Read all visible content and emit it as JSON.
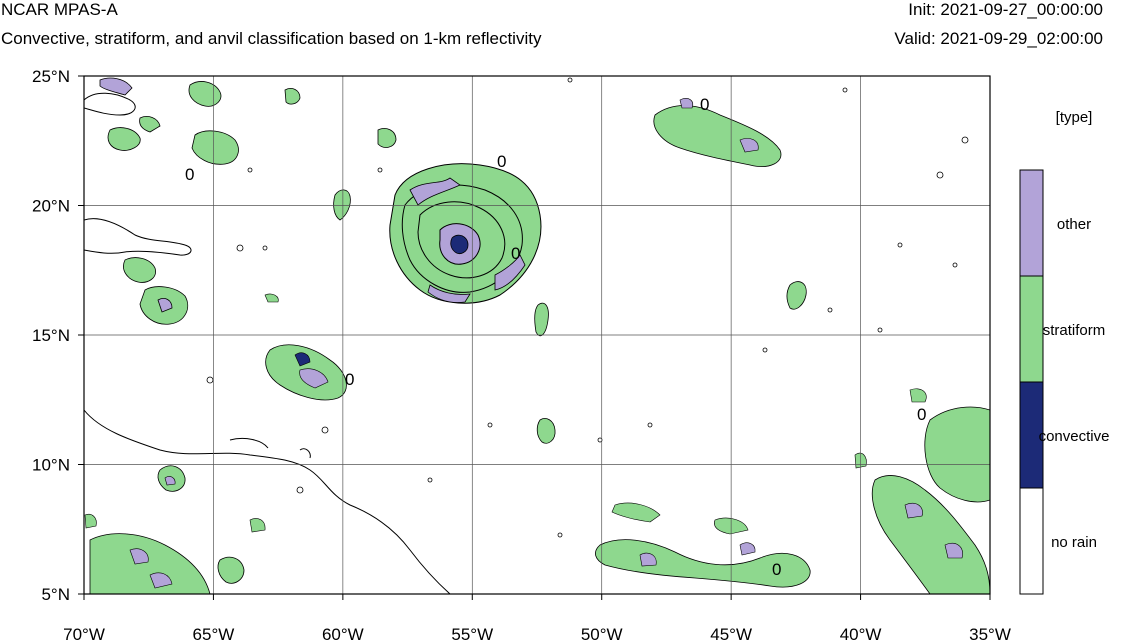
{
  "header": {
    "title": "NCAR MPAS-A",
    "subtitle": "Convective, stratiform, and anvil classification based on 1-km reflectivity",
    "init": "Init: 2021-09-27_00:00:00",
    "valid": "Valid: 2021-09-29_02:00:00"
  },
  "map": {
    "lon_ticks": [
      "70°W",
      "65°W",
      "60°W",
      "55°W",
      "50°W",
      "45°W",
      "40°W",
      "35°W"
    ],
    "lat_ticks": [
      "25°N",
      "20°N",
      "15°N",
      "10°N",
      "5°N"
    ],
    "lon_range": [
      -70,
      -35
    ],
    "lat_range": [
      5,
      25
    ],
    "contour_label": "0"
  },
  "legend": {
    "title": "[type]",
    "items": [
      {
        "label": "other",
        "color": "#b2a3d8"
      },
      {
        "label": "stratiform",
        "color": "#8ed88e"
      },
      {
        "label": "convective",
        "color": "#1c2a77"
      },
      {
        "label": "no rain",
        "color": "#ffffff"
      }
    ]
  },
  "colors": {
    "stratiform": "#8ed88e",
    "convective": "#1c2a77",
    "other": "#b2a3d8"
  }
}
